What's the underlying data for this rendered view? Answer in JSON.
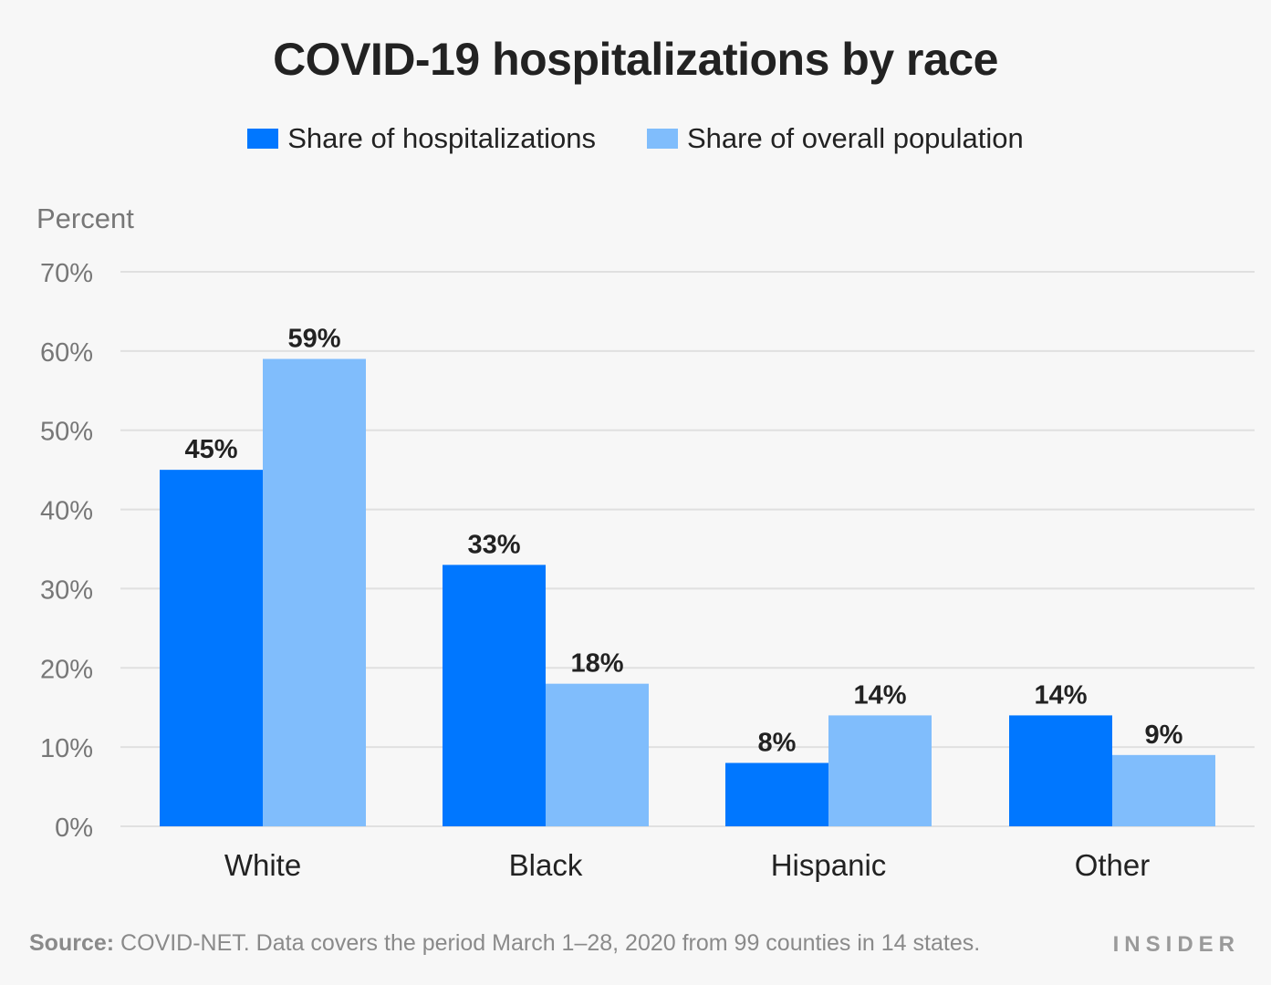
{
  "title": "COVID-19 hospitalizations by race",
  "legend": [
    {
      "label": "Share of hospitalizations",
      "color": "#0077ff"
    },
    {
      "label": "Share of overall population",
      "color": "#80bdfc"
    }
  ],
  "footer": {
    "source_label": "Source:",
    "source_text": "COVID-NET. Data covers the period March 1–28, 2020 from 99 counties in 14 states.",
    "logo": "INSIDER"
  },
  "chart_data": {
    "type": "bar",
    "title": "COVID-19 hospitalizations by race",
    "ylabel": "Percent",
    "xlabel": "",
    "categories": [
      "White",
      "Black",
      "Hispanic",
      "Other"
    ],
    "series": [
      {
        "name": "Share of hospitalizations",
        "values": [
          45,
          33,
          8,
          14
        ],
        "labels": [
          "45%",
          "33%",
          "8%",
          "14%"
        ],
        "color": "#0077ff"
      },
      {
        "name": "Share of overall population",
        "values": [
          59,
          18,
          14,
          9
        ],
        "labels": [
          "59%",
          "18%",
          "14%",
          "9%"
        ],
        "color": "#80bdfc"
      }
    ],
    "ylim": [
      0,
      70
    ],
    "yticks": [
      0,
      10,
      20,
      30,
      40,
      50,
      60,
      70
    ],
    "ytick_labels": [
      "0%",
      "10%",
      "20%",
      "30%",
      "40%",
      "50%",
      "60%",
      "70%"
    ],
    "grid": true,
    "legend_position": "top-center"
  }
}
